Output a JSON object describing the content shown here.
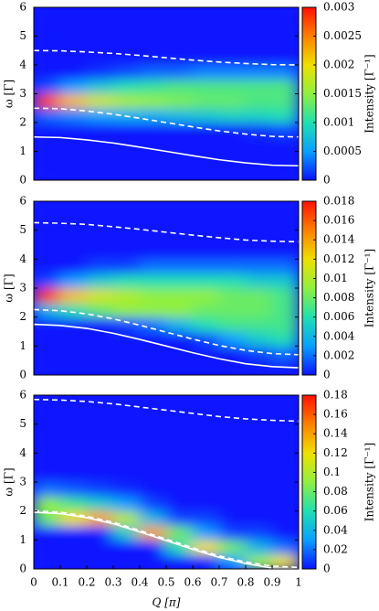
{
  "chart_data": [
    {
      "type": "heatmap",
      "ylabel": "ω [Γ]",
      "colorbar_label": "Intensity [Γ⁻¹]",
      "colorscale": [
        "#0a14ff",
        "#0aa0ff",
        "#20e0b0",
        "#90f040",
        "#f0e000",
        "#ff8000",
        "#ff1000"
      ],
      "xlim": [
        0,
        1
      ],
      "ylim": [
        0,
        6
      ],
      "yticks": [
        0,
        1,
        2,
        3,
        4,
        5,
        6
      ],
      "zlim": [
        0,
        0.003
      ],
      "zticks": [
        0,
        0.0005,
        0.001,
        0.0015,
        0.002,
        0.0025,
        0.003
      ],
      "x": [
        0.05,
        0.15,
        0.25,
        0.35,
        0.45,
        0.55,
        0.65,
        0.75,
        0.85,
        0.95
      ],
      "y": [
        0.25,
        0.75,
        1.25,
        1.75,
        2.25,
        2.75,
        3.25,
        3.75,
        4.25,
        4.75,
        5.25,
        5.75
      ],
      "z": [
        [
          0,
          0,
          0,
          0,
          0,
          0,
          0,
          0,
          0,
          0
        ],
        [
          0,
          0,
          0,
          0,
          0,
          0,
          0,
          0,
          0,
          0
        ],
        [
          0,
          0,
          0,
          0,
          0,
          0,
          0,
          0,
          0,
          0
        ],
        [
          0,
          0,
          0,
          0,
          0,
          0,
          0,
          0,
          0.0001,
          0.0002
        ],
        [
          0.0003,
          0.0004,
          0.0005,
          0.0006,
          0.0006,
          0.0007,
          0.0008,
          0.0009,
          0.0009,
          0.001
        ],
        [
          0.0028,
          0.0022,
          0.0018,
          0.0016,
          0.0015,
          0.0014,
          0.0013,
          0.0013,
          0.0012,
          0.0012
        ],
        [
          0.0002,
          0.0005,
          0.0008,
          0.001,
          0.0011,
          0.0012,
          0.0012,
          0.0012,
          0.0012,
          0.0012
        ],
        [
          0,
          0,
          0.0001,
          0.0002,
          0.0003,
          0.0003,
          0.0004,
          0.0004,
          0.0004,
          0.0004
        ],
        [
          0,
          0,
          0,
          0,
          0,
          0,
          0,
          0,
          0,
          0
        ],
        [
          0,
          0,
          0,
          0,
          0,
          0,
          0,
          0,
          0,
          0
        ],
        [
          0,
          0,
          0,
          0,
          0,
          0,
          0,
          0,
          0,
          0
        ],
        [
          0,
          0,
          0,
          0,
          0,
          0,
          0,
          0,
          0,
          0
        ]
      ],
      "line_x": [
        0,
        0.1,
        0.2,
        0.3,
        0.4,
        0.5,
        0.6,
        0.7,
        0.8,
        0.9,
        1
      ],
      "lines": [
        {
          "style": "dashed",
          "color": "#ffffff",
          "values": [
            4.5,
            4.49,
            4.45,
            4.4,
            4.33,
            4.25,
            4.17,
            4.1,
            4.05,
            4.01,
            4.0
          ]
        },
        {
          "style": "dashed",
          "color": "#ffffff",
          "values": [
            2.5,
            2.48,
            2.4,
            2.29,
            2.15,
            2.0,
            1.85,
            1.71,
            1.6,
            1.52,
            1.5
          ]
        },
        {
          "style": "solid",
          "color": "#ffffff",
          "values": [
            1.5,
            1.48,
            1.4,
            1.29,
            1.15,
            1.0,
            0.85,
            0.71,
            0.6,
            0.52,
            0.5
          ]
        }
      ]
    },
    {
      "type": "heatmap",
      "ylabel": "ω [Γ]",
      "colorbar_label": "Intensity [Γ⁻¹]",
      "colorscale": [
        "#0a14ff",
        "#0aa0ff",
        "#20e0b0",
        "#90f040",
        "#f0e000",
        "#ff8000",
        "#ff1000"
      ],
      "xlim": [
        0,
        1
      ],
      "ylim": [
        0,
        6
      ],
      "yticks": [
        0,
        1,
        2,
        3,
        4,
        5,
        6
      ],
      "zlim": [
        0,
        0.018
      ],
      "zticks": [
        0,
        0.002,
        0.004,
        0.006,
        0.008,
        0.01,
        0.012,
        0.014,
        0.016,
        0.018
      ],
      "x": [
        0.05,
        0.15,
        0.25,
        0.35,
        0.45,
        0.55,
        0.65,
        0.75,
        0.85,
        0.95
      ],
      "y": [
        0.25,
        0.75,
        1.25,
        1.75,
        2.25,
        2.75,
        3.25,
        3.75,
        4.25,
        4.75,
        5.25,
        5.75
      ],
      "z": [
        [
          0,
          0,
          0,
          0,
          0,
          0,
          0,
          0,
          0,
          0
        ],
        [
          0,
          0,
          0,
          0,
          0,
          0,
          0,
          0,
          0.001,
          0.002
        ],
        [
          0,
          0,
          0,
          0,
          0,
          0,
          0.001,
          0.003,
          0.005,
          0.006
        ],
        [
          0,
          0,
          0,
          0.001,
          0.002,
          0.004,
          0.006,
          0.007,
          0.007,
          0.007
        ],
        [
          0.004,
          0.006,
          0.008,
          0.009,
          0.009,
          0.009,
          0.008,
          0.008,
          0.008,
          0.007
        ],
        [
          0.017,
          0.013,
          0.011,
          0.01,
          0.009,
          0.009,
          0.009,
          0.008,
          0.008,
          0.007
        ],
        [
          0.001,
          0.003,
          0.005,
          0.006,
          0.006,
          0.006,
          0.006,
          0.006,
          0.005,
          0.005
        ],
        [
          0,
          0,
          0.001,
          0.001,
          0.002,
          0.002,
          0.002,
          0.002,
          0.002,
          0.002
        ],
        [
          0,
          0,
          0,
          0,
          0,
          0,
          0,
          0,
          0,
          0
        ],
        [
          0,
          0,
          0,
          0,
          0,
          0,
          0,
          0,
          0,
          0
        ],
        [
          0,
          0,
          0,
          0,
          0,
          0,
          0,
          0,
          0,
          0
        ],
        [
          0,
          0,
          0,
          0,
          0,
          0,
          0,
          0,
          0,
          0
        ]
      ],
      "line_x": [
        0,
        0.1,
        0.2,
        0.3,
        0.4,
        0.5,
        0.6,
        0.7,
        0.8,
        0.9,
        1
      ],
      "lines": [
        {
          "style": "dashed",
          "color": "#ffffff",
          "values": [
            5.26,
            5.24,
            5.2,
            5.12,
            5.03,
            4.93,
            4.83,
            4.74,
            4.66,
            4.62,
            4.6
          ]
        },
        {
          "style": "dashed",
          "color": "#ffffff",
          "values": [
            2.26,
            2.22,
            2.11,
            1.94,
            1.72,
            1.48,
            1.24,
            1.02,
            0.85,
            0.74,
            0.7
          ]
        },
        {
          "style": "solid",
          "color": "#ffffff",
          "values": [
            1.75,
            1.71,
            1.61,
            1.44,
            1.23,
            1.0,
            0.77,
            0.56,
            0.39,
            0.29,
            0.25
          ]
        }
      ]
    },
    {
      "type": "heatmap",
      "ylabel": "ω [Γ]",
      "xlabel": "Q [π]",
      "colorbar_label": "Intensity [Γ⁻¹]",
      "colorscale": [
        "#0a14ff",
        "#0aa0ff",
        "#20e0b0",
        "#90f040",
        "#f0e000",
        "#ff8000",
        "#ff1000"
      ],
      "xlim": [
        0,
        1
      ],
      "ylim": [
        0,
        6
      ],
      "yticks": [
        0,
        1,
        2,
        3,
        4,
        5,
        6
      ],
      "xticks": [
        0,
        0.1,
        0.2,
        0.3,
        0.4,
        0.5,
        0.6,
        0.7,
        0.8,
        0.9,
        1
      ],
      "zlim": [
        0,
        0.18
      ],
      "zticks": [
        0,
        0.02,
        0.04,
        0.06,
        0.08,
        0.1,
        0.12,
        0.14,
        0.16,
        0.18
      ],
      "x": [
        0.05,
        0.15,
        0.25,
        0.35,
        0.45,
        0.55,
        0.65,
        0.75,
        0.85,
        0.95
      ],
      "y": [
        0.25,
        0.75,
        1.25,
        1.75,
        2.25,
        2.75,
        3.25,
        3.75,
        4.25,
        4.75,
        5.25,
        5.75
      ],
      "z": [
        [
          0,
          0,
          0,
          0,
          0,
          0,
          0,
          0.03,
          0.09,
          0.12
        ],
        [
          0,
          0,
          0,
          0,
          0,
          0.06,
          0.12,
          0.08,
          0.04,
          0.02
        ],
        [
          0,
          0,
          0,
          0.05,
          0.14,
          0.08,
          0.03,
          0.01,
          0.01,
          0
        ],
        [
          0.08,
          0.12,
          0.14,
          0.1,
          0.04,
          0.01,
          0.01,
          0,
          0,
          0
        ],
        [
          0.09,
          0.07,
          0.05,
          0.03,
          0.01,
          0,
          0,
          0,
          0,
          0
        ],
        [
          0.02,
          0.015,
          0.01,
          0.005,
          0,
          0,
          0,
          0,
          0,
          0
        ],
        [
          0,
          0,
          0,
          0,
          0,
          0,
          0,
          0,
          0,
          0
        ],
        [
          0,
          0,
          0,
          0,
          0,
          0,
          0,
          0,
          0,
          0
        ],
        [
          0,
          0,
          0,
          0,
          0,
          0,
          0,
          0,
          0,
          0
        ],
        [
          0,
          0,
          0,
          0,
          0,
          0,
          0,
          0,
          0,
          0
        ],
        [
          0,
          0,
          0,
          0,
          0,
          0,
          0,
          0,
          0,
          0
        ],
        [
          0,
          0,
          0,
          0,
          0,
          0,
          0,
          0,
          0,
          0
        ]
      ],
      "line_x": [
        0,
        0.1,
        0.2,
        0.3,
        0.4,
        0.5,
        0.6,
        0.7,
        0.8,
        0.9,
        1
      ],
      "lines": [
        {
          "style": "dashed",
          "color": "#ffffff",
          "values": [
            5.85,
            5.83,
            5.78,
            5.7,
            5.59,
            5.48,
            5.37,
            5.26,
            5.18,
            5.13,
            5.1
          ]
        },
        {
          "style": "dashed",
          "color": "#ffffff",
          "values": [
            2.01,
            1.96,
            1.82,
            1.61,
            1.33,
            1.03,
            0.73,
            0.45,
            0.24,
            0.1,
            0.05
          ]
        },
        {
          "style": "solid",
          "color": "#ffffff",
          "values": [
            1.96,
            1.91,
            1.77,
            1.56,
            1.28,
            0.98,
            0.68,
            0.4,
            0.19,
            0.03,
            0.0
          ]
        }
      ]
    }
  ]
}
